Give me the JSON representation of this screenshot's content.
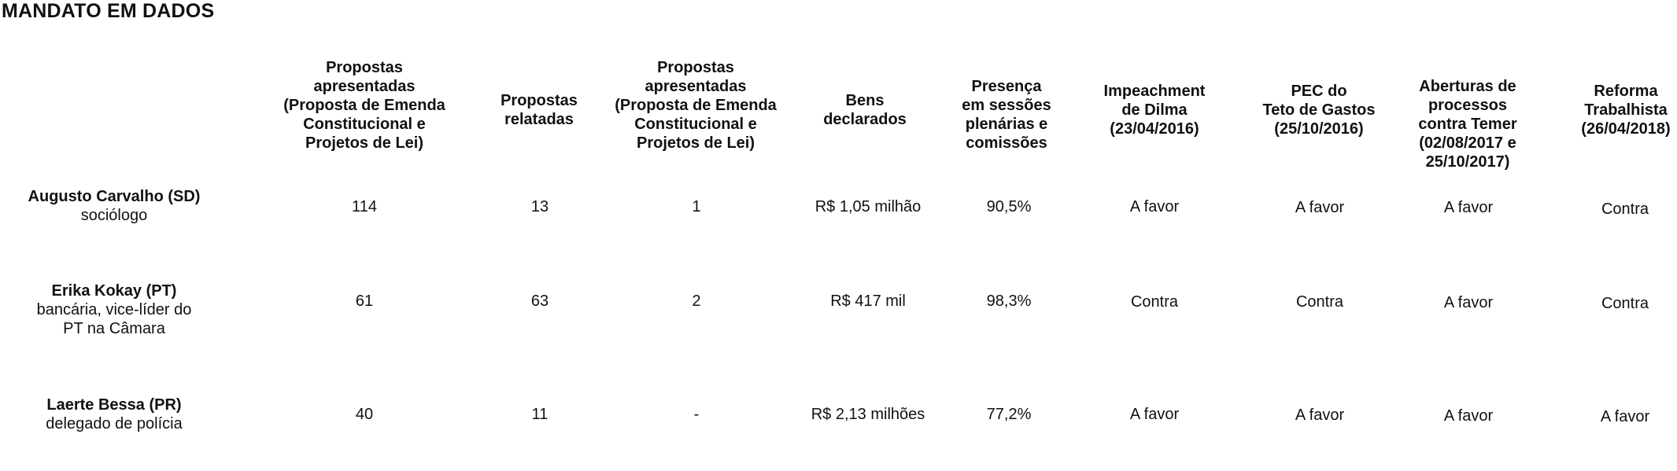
{
  "title": "MANDATO EM DADOS",
  "headers": [
    [
      "Propostas",
      "apresentadas",
      "(Proposta de Emenda",
      "Constitucional e",
      "Projetos de Lei)"
    ],
    [
      "Propostas",
      "relatadas"
    ],
    [
      "Propostas",
      "apresentadas",
      "(Proposta de Emenda",
      "Constitucional e",
      "Projetos de Lei)"
    ],
    [
      "Bens",
      "declarados"
    ],
    [
      "Presença",
      "em sessões",
      "plenárias e",
      "comissões"
    ],
    [
      "Impeachment",
      "de Dilma",
      "(23/04/2016)"
    ],
    [
      "PEC do",
      "Teto de Gastos",
      "(25/10/2016)"
    ],
    [
      "Aberturas de",
      "processos",
      "contra Temer",
      "(02/08/2017 e",
      "25/10/2017)"
    ],
    [
      "Reforma",
      "Trabalhista",
      "(26/04/2018)"
    ]
  ],
  "rows": [
    {
      "name": "Augusto Carvalho (SD)",
      "role_lines": [
        "sociólogo"
      ],
      "values": [
        "114",
        "13",
        "1",
        "R$ 1,05 milhão",
        "90,5%",
        "A favor",
        "A favor",
        "A favor",
        "Contra"
      ]
    },
    {
      "name": "Erika Kokay (PT)",
      "role_lines": [
        "bancária, vice-líder do",
        "PT na Câmara"
      ],
      "values": [
        "61",
        "63",
        "2",
        "R$ 417 mil",
        "98,3%",
        "Contra",
        "Contra",
        "A favor",
        "Contra"
      ]
    },
    {
      "name": "Laerte Bessa (PR)",
      "role_lines": [
        "delegado de polícia"
      ],
      "values": [
        "40",
        "11",
        "-",
        "R$ 2,13 milhões",
        "77,2%",
        "A favor",
        "A favor",
        "A favor",
        "A favor"
      ]
    }
  ]
}
